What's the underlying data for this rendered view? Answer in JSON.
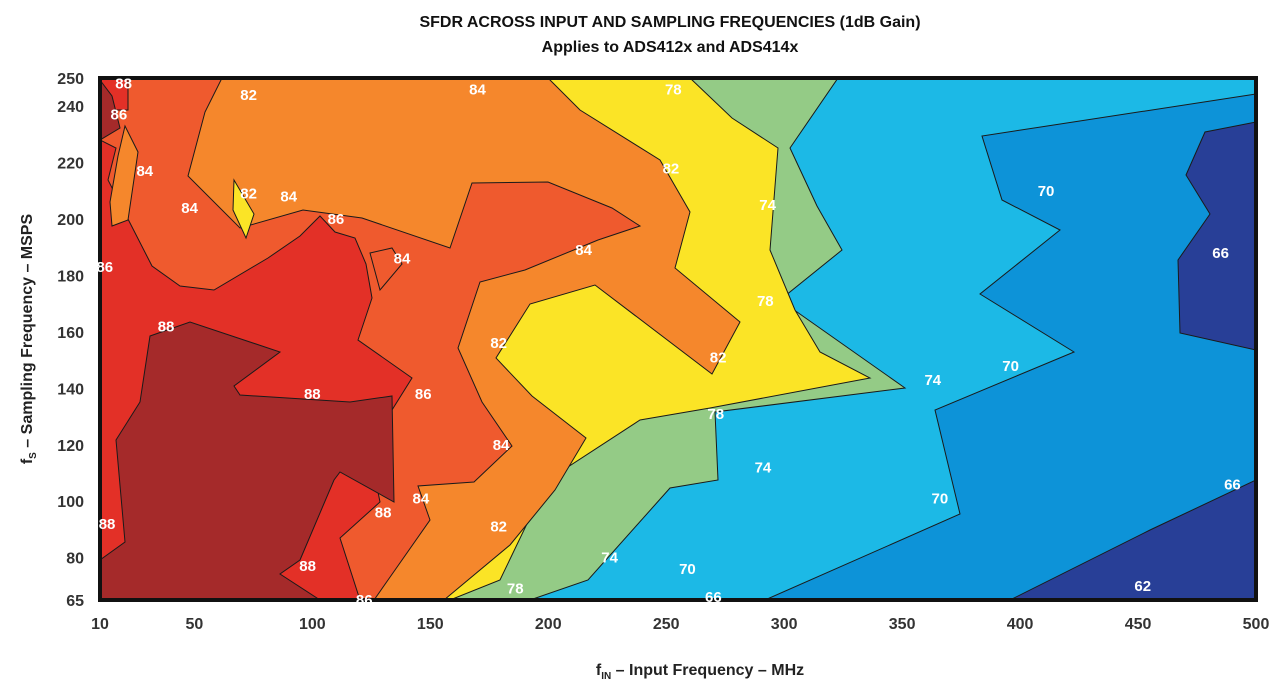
{
  "chart_data": {
    "type": "heatmap",
    "subtype": "filled-contour",
    "title": "SFDR ACROSS INPUT AND SAMPLING FREQUENCIES (1dB Gain)",
    "subtitle": "Applies to ADS412x and ADS414x",
    "xlabel": {
      "main": "f",
      "sub": "IN",
      "rest": " – Input Frequency – MHz"
    },
    "ylabel": {
      "main": "f",
      "sub": "S",
      "rest": " – Sampling Frequency – MSPS"
    },
    "xlim": [
      10,
      500
    ],
    "ylim": [
      65,
      250
    ],
    "xticks": [
      "10",
      "50",
      "100",
      "150",
      "200",
      "250",
      "300",
      "350",
      "400",
      "450",
      "500"
    ],
    "yticks": [
      "65",
      "80",
      "100",
      "120",
      "140",
      "160",
      "180",
      "200",
      "220",
      "240",
      "250"
    ],
    "levels": [
      {
        "min": 88,
        "color": "#a52a2a"
      },
      {
        "min": 86,
        "color": "#e33027"
      },
      {
        "min": 84,
        "color": "#ef5a2e"
      },
      {
        "min": 82,
        "color": "#f5872c"
      },
      {
        "min": 78,
        "color": "#fbe426"
      },
      {
        "min": 74,
        "color": "#94cb86"
      },
      {
        "min": 70,
        "color": "#1cb9e6"
      },
      {
        "min": 66,
        "color": "#0d93d8"
      },
      {
        "min": 62,
        "color": "#283f97"
      }
    ],
    "contour_labels": [
      {
        "x": 20,
        "y": 248,
        "text": "88"
      },
      {
        "x": 18,
        "y": 237,
        "text": "86"
      },
      {
        "x": 73,
        "y": 244,
        "text": "82"
      },
      {
        "x": 170,
        "y": 246,
        "text": "84"
      },
      {
        "x": 253,
        "y": 246,
        "text": "78"
      },
      {
        "x": 29,
        "y": 217,
        "text": "84"
      },
      {
        "x": 48,
        "y": 204,
        "text": "84"
      },
      {
        "x": 73,
        "y": 209,
        "text": "82"
      },
      {
        "x": 90,
        "y": 208,
        "text": "84"
      },
      {
        "x": 110,
        "y": 200,
        "text": "86"
      },
      {
        "x": 252,
        "y": 218,
        "text": "82"
      },
      {
        "x": 293,
        "y": 205,
        "text": "74"
      },
      {
        "x": 411,
        "y": 210,
        "text": "70"
      },
      {
        "x": 12,
        "y": 183,
        "text": "86"
      },
      {
        "x": 138,
        "y": 186,
        "text": "84"
      },
      {
        "x": 215,
        "y": 189,
        "text": "84"
      },
      {
        "x": 485,
        "y": 188,
        "text": "66"
      },
      {
        "x": 292,
        "y": 171,
        "text": "78"
      },
      {
        "x": 38,
        "y": 162,
        "text": "88"
      },
      {
        "x": 179,
        "y": 156,
        "text": "82"
      },
      {
        "x": 272,
        "y": 151,
        "text": "82"
      },
      {
        "x": 396,
        "y": 148,
        "text": "70"
      },
      {
        "x": 363,
        "y": 143,
        "text": "74"
      },
      {
        "x": 100,
        "y": 138,
        "text": "88"
      },
      {
        "x": 147,
        "y": 138,
        "text": "86"
      },
      {
        "x": 271,
        "y": 131,
        "text": "78"
      },
      {
        "x": 180,
        "y": 120,
        "text": "84"
      },
      {
        "x": 291,
        "y": 112,
        "text": "74"
      },
      {
        "x": 146,
        "y": 101,
        "text": "84"
      },
      {
        "x": 490,
        "y": 106,
        "text": "66"
      },
      {
        "x": 130,
        "y": 96,
        "text": "88"
      },
      {
        "x": 366,
        "y": 101,
        "text": "70"
      },
      {
        "x": 13,
        "y": 92,
        "text": "88"
      },
      {
        "x": 179,
        "y": 91,
        "text": "82"
      },
      {
        "x": 226,
        "y": 80,
        "text": "74"
      },
      {
        "x": 259,
        "y": 76,
        "text": "70"
      },
      {
        "x": 98,
        "y": 77,
        "text": "88"
      },
      {
        "x": 452,
        "y": 70,
        "text": "62"
      },
      {
        "x": 186,
        "y": 69,
        "text": "78"
      },
      {
        "x": 122,
        "y": 65,
        "text": "86"
      },
      {
        "x": 270,
        "y": 66,
        "text": "66"
      }
    ]
  }
}
